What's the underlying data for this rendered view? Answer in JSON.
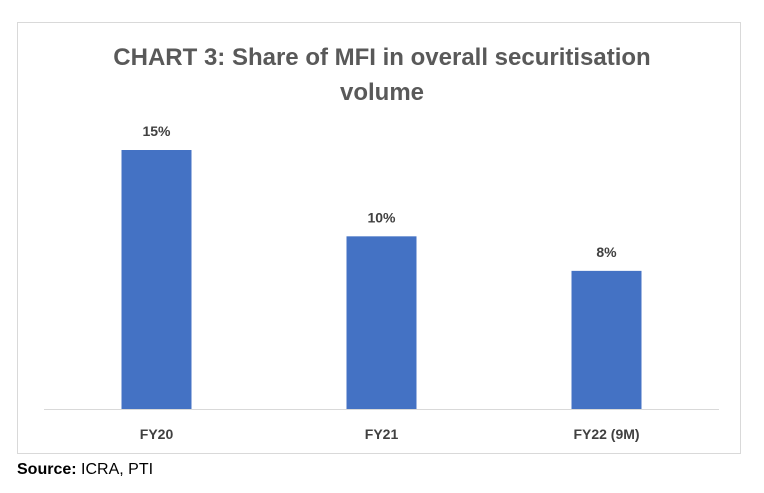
{
  "chart_data": {
    "type": "bar",
    "title_lines": [
      "CHART 3: Share of MFI in overall securitisation",
      "volume"
    ],
    "categories": [
      "FY20",
      "FY21",
      "FY22 (9M)"
    ],
    "values": [
      15,
      10,
      8
    ],
    "data_labels": [
      "15%",
      "10%",
      "8%"
    ],
    "unit": "%",
    "ylim": [
      0,
      15
    ],
    "grid": false,
    "legend": "none",
    "bar_color": "#4472c4",
    "axis_color": "#d9d9d9",
    "label_color": "#404040"
  },
  "source": {
    "prefix": "Source:",
    "text": " ICRA, PTI"
  }
}
